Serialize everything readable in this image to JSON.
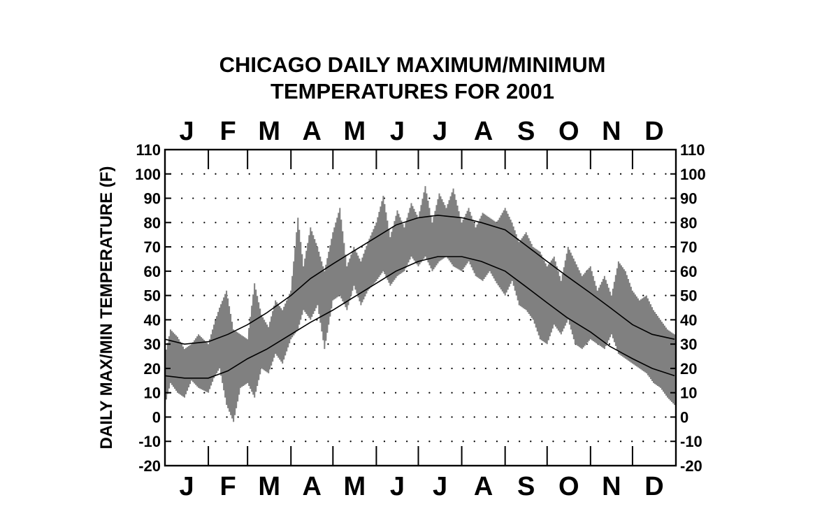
{
  "chart_data": {
    "type": "line",
    "title": "CHICAGO DAILY MAXIMUM/MINIMUM",
    "subtitle": "TEMPERATURES FOR 2001",
    "ylabel": "DAILY MAX/MIN TEMPERATURE (F)",
    "xlabel": "",
    "months": [
      "J",
      "F",
      "M",
      "A",
      "M",
      "J",
      "J",
      "A",
      "S",
      "O",
      "N",
      "D"
    ],
    "month_start_days": [
      1,
      32,
      60,
      91,
      121,
      152,
      182,
      213,
      244,
      274,
      305,
      335
    ],
    "ylim": [
      -20,
      110
    ],
    "yticks": [
      110,
      100,
      90,
      80,
      70,
      60,
      50,
      40,
      30,
      20,
      10,
      0,
      -10,
      -20
    ],
    "grid": "dotted",
    "colors": {
      "daily_range": "#808080",
      "normals": "#000000",
      "axes": "#000000"
    },
    "normal_high": {
      "days": [
        1,
        15,
        32,
        46,
        60,
        74,
        91,
        105,
        121,
        135,
        152,
        166,
        182,
        196,
        213,
        227,
        244,
        258,
        274,
        288,
        305,
        319,
        335,
        349,
        365
      ],
      "values": [
        32,
        30,
        31,
        34,
        38,
        43,
        50,
        57,
        63,
        68,
        74,
        79,
        82,
        83,
        82,
        80,
        77,
        71,
        64,
        58,
        51,
        45,
        38,
        34,
        32
      ]
    },
    "normal_low": {
      "days": [
        1,
        15,
        32,
        46,
        60,
        74,
        91,
        105,
        121,
        135,
        152,
        166,
        182,
        196,
        213,
        227,
        244,
        258,
        274,
        288,
        305,
        319,
        335,
        349,
        365
      ],
      "values": [
        17,
        16,
        16,
        19,
        24,
        28,
        34,
        39,
        44,
        49,
        55,
        60,
        64,
        66,
        66,
        64,
        60,
        54,
        47,
        41,
        35,
        29,
        24,
        20,
        17
      ]
    },
    "daily_range": {
      "days": [
        1,
        5,
        10,
        15,
        20,
        25,
        32,
        36,
        40,
        45,
        50,
        55,
        60,
        65,
        70,
        75,
        80,
        85,
        91,
        96,
        100,
        105,
        110,
        115,
        121,
        126,
        131,
        136,
        141,
        146,
        152,
        157,
        162,
        167,
        172,
        177,
        182,
        187,
        192,
        197,
        202,
        207,
        213,
        218,
        223,
        228,
        233,
        238,
        244,
        249,
        254,
        259,
        264,
        269,
        274,
        279,
        284,
        289,
        294,
        299,
        305,
        310,
        315,
        320,
        325,
        330,
        335,
        340,
        345,
        350,
        355,
        360,
        365
      ],
      "max": [
        25,
        36,
        33,
        28,
        30,
        34,
        30,
        38,
        45,
        52,
        36,
        34,
        32,
        55,
        42,
        37,
        48,
        44,
        52,
        82,
        62,
        78,
        70,
        60,
        76,
        86,
        62,
        70,
        64,
        72,
        80,
        91,
        74,
        85,
        78,
        88,
        82,
        95,
        80,
        92,
        86,
        94,
        80,
        86,
        78,
        84,
        82,
        80,
        86,
        80,
        72,
        76,
        70,
        68,
        62,
        66,
        56,
        70,
        64,
        58,
        62,
        52,
        58,
        50,
        64,
        60,
        52,
        48,
        50,
        44,
        40,
        36,
        34
      ],
      "min": [
        5,
        14,
        10,
        8,
        15,
        12,
        10,
        16,
        20,
        5,
        -2,
        12,
        14,
        8,
        20,
        18,
        26,
        22,
        32,
        36,
        44,
        40,
        46,
        28,
        48,
        50,
        44,
        54,
        46,
        52,
        56,
        60,
        54,
        58,
        60,
        66,
        62,
        66,
        60,
        64,
        66,
        62,
        60,
        64,
        58,
        56,
        60,
        55,
        50,
        56,
        46,
        44,
        40,
        32,
        30,
        38,
        34,
        40,
        30,
        28,
        32,
        30,
        28,
        34,
        26,
        24,
        22,
        20,
        18,
        14,
        12,
        8,
        5
      ]
    }
  }
}
